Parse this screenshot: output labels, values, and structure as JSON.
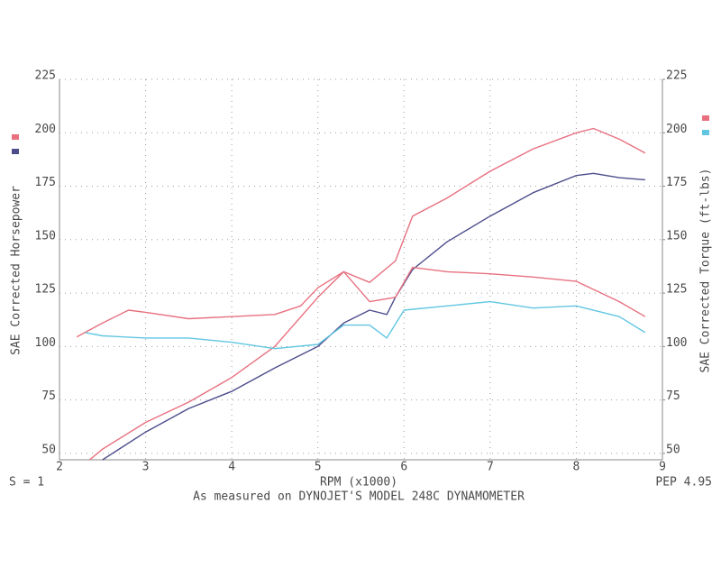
{
  "chart_data": {
    "type": "line",
    "xlabel": "RPM (x1000)",
    "ylabel": "SAE Corrected Horsepower",
    "y2label": "SAE Corrected Torque (ft-lbs)",
    "notes": [
      "S = 1",
      "PEP 4.95",
      "As measured on DYNOJET'S MODEL 248C DYNAMOMETER"
    ],
    "xlim": [
      2,
      9
    ],
    "xticks": [
      2,
      3,
      4,
      5,
      6,
      7,
      8,
      9
    ],
    "ylim": [
      47,
      225
    ],
    "yticks": [
      50,
      75,
      100,
      125,
      150,
      175,
      200,
      225
    ],
    "y2lim": [
      47,
      225
    ],
    "y2ticks": [
      50,
      75,
      100,
      125,
      150,
      175,
      200,
      225
    ],
    "grid": true,
    "series": [
      {
        "color": "#e8707f",
        "axis": "y",
        "x": [
          2.35,
          2.5,
          3,
          3.5,
          4,
          4.5,
          5,
          5.3,
          5.6,
          5.9,
          6.1,
          6.5,
          7,
          7.5,
          8,
          8.2,
          8.5,
          8.8
        ],
        "values": [
          47,
          52,
          64.5,
          74,
          85.5,
          100,
          123,
          135,
          130,
          140,
          161,
          169.5,
          182,
          192.5,
          200,
          202,
          197,
          190.5
        ]
      },
      {
        "color": "#4d4d8c",
        "axis": "y",
        "x": [
          2.5,
          3,
          3.5,
          4,
          4.5,
          5,
          5.3,
          5.6,
          5.8,
          5.9,
          6.1,
          6.5,
          7,
          7.5,
          8,
          8.2,
          8.5,
          8.8
        ],
        "values": [
          47,
          60,
          71,
          79,
          90,
          100,
          111,
          117,
          115,
          123,
          136,
          149,
          161,
          172,
          180,
          181,
          179,
          178
        ]
      },
      {
        "color": "#e8707f",
        "axis": "y2",
        "x": [
          2.2,
          2.5,
          2.8,
          3,
          3.5,
          4,
          4.5,
          4.8,
          5,
          5.3,
          5.6,
          5.9,
          6.1,
          6.5,
          7,
          7.5,
          8,
          8.5,
          8.8
        ],
        "values": [
          104.5,
          111,
          117,
          116,
          113,
          114,
          115,
          119,
          127.5,
          135,
          121,
          123,
          137,
          135,
          134,
          132.5,
          130.5,
          121,
          114
        ]
      },
      {
        "color": "#62c6e2",
        "axis": "y2",
        "x": [
          2.3,
          2.5,
          3,
          3.5,
          4,
          4.5,
          5,
          5.3,
          5.6,
          5.8,
          6,
          6.5,
          7,
          7.5,
          8,
          8.5,
          8.8
        ],
        "values": [
          106.5,
          105,
          104,
          104,
          102,
          99,
          101,
          110,
          110,
          104,
          117,
          119,
          121,
          118,
          119,
          114,
          106.5
        ]
      }
    ]
  }
}
